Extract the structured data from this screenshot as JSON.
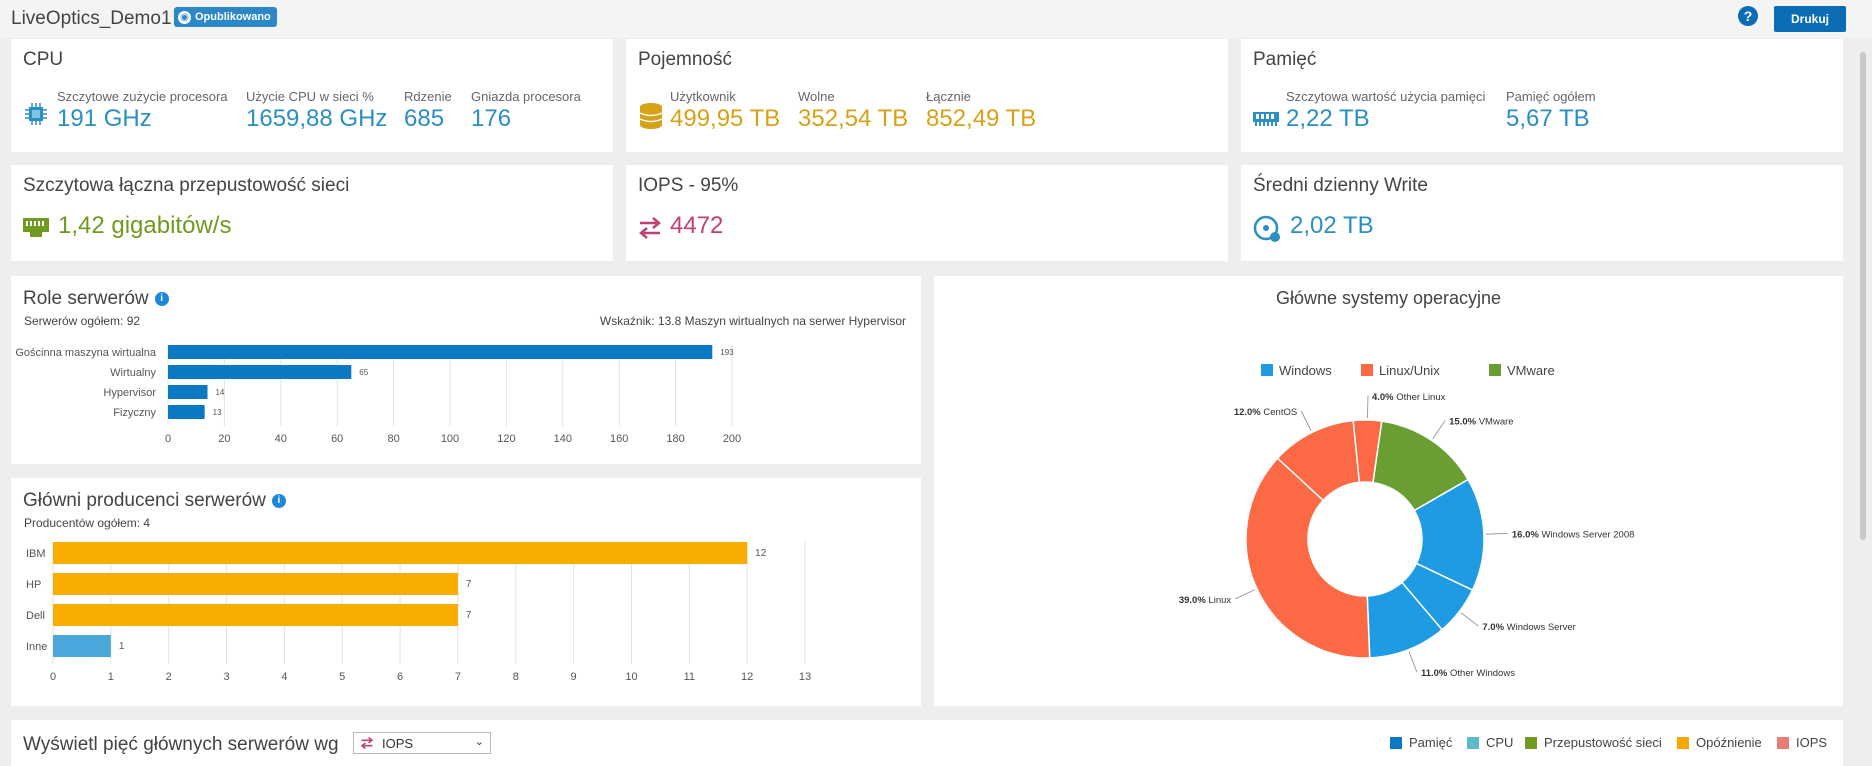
{
  "header": {
    "title": "LiveOptics_Demo1",
    "badge": "Opublikowano",
    "help": "?",
    "print_label": "Drukuj"
  },
  "cpu": {
    "title": "CPU",
    "metrics": [
      {
        "label": "Szczytowe zużycie procesora",
        "value": "191 GHz"
      },
      {
        "label": "Użycie CPU w sieci %",
        "value": "1659,88 GHz"
      },
      {
        "label": "Rdzenie",
        "value": "685"
      },
      {
        "label": "Gniazda procesora",
        "value": "176"
      }
    ]
  },
  "capacity": {
    "title": "Pojemność",
    "metrics": [
      {
        "label": "Użytkownik",
        "value": "499,95 TB"
      },
      {
        "label": "Wolne",
        "value": "352,54 TB"
      },
      {
        "label": "Łącznie",
        "value": "852,49 TB"
      }
    ]
  },
  "memory": {
    "title": "Pamięć",
    "metrics": [
      {
        "label": "Szczytowa wartość użycia pamięci",
        "value": "2,22 TB"
      },
      {
        "label": "Pamięć ogółem",
        "value": "5,67 TB"
      }
    ]
  },
  "network": {
    "title": "Szczytowa łączna przepustowość sieci",
    "value": "1,42 gigabitów/s"
  },
  "iops": {
    "title": "IOPS - 95%",
    "value": "4472"
  },
  "write": {
    "title": "Średni dzienny Write",
    "value": "2,02 TB"
  },
  "colors": {
    "blue_bar": "#0a78c2",
    "gold_bar": "#f9ad00",
    "light_blue_bar": "#4ba6dc",
    "windows": "#1e9be3",
    "linux": "#fb6a44",
    "vmware": "#6a9e33"
  },
  "roles": {
    "title": "Role serwerów",
    "info": "i",
    "total": "Serwerów ogółem: 92",
    "ratio": "Wskaźnik: 13.8 Maszyn wirtualnych na serwer Hypervisor"
  },
  "vendors": {
    "title": "Główni producenci serwerów",
    "info": "i",
    "total": "Producentów ogółem: 4"
  },
  "os": {
    "title": "Główne systemy operacyjne"
  },
  "bottom": {
    "title": "Wyświetl pięć głównych serwerów wg",
    "select_value": "IOPS",
    "legend": [
      {
        "label": "Pamięć",
        "color": "#0a78c2"
      },
      {
        "label": "CPU",
        "color": "#5bbcc8"
      },
      {
        "label": "Przepustowość sieci",
        "color": "#6f9a1f"
      },
      {
        "label": "Opóźnienie",
        "color": "#f5a800"
      },
      {
        "label": "IOPS",
        "color": "#e87c76"
      }
    ]
  },
  "chart_data": [
    {
      "type": "bar",
      "orientation": "horizontal",
      "categories": [
        "Gościnna maszyna wirtualna",
        "Wirtualny",
        "Hypervisor",
        "Fizyczny"
      ],
      "values": [
        193,
        65,
        14,
        13
      ],
      "xlim": [
        0,
        200
      ],
      "xticks": [
        0,
        20,
        40,
        60,
        80,
        100,
        120,
        140,
        160,
        180,
        200
      ],
      "grid": true
    },
    {
      "type": "bar",
      "orientation": "horizontal",
      "categories": [
        "IBM",
        "HP",
        "Dell",
        "Inne"
      ],
      "values": [
        12,
        7,
        7,
        1
      ],
      "xlim": [
        0,
        13
      ],
      "xticks": [
        0,
        1,
        2,
        3,
        4,
        5,
        6,
        7,
        8,
        9,
        10,
        11,
        12,
        13
      ],
      "grid": true
    },
    {
      "type": "pie",
      "donut": true,
      "legend_position": "top",
      "legend": [
        {
          "name": "Windows",
          "color": "#1e9be3"
        },
        {
          "name": "Linux/Unix",
          "color": "#fb6a44"
        },
        {
          "name": "VMware",
          "color": "#6a9e33"
        }
      ],
      "slices": [
        {
          "label": "Other Linux",
          "pct": "4.0%",
          "value": 4.0,
          "color": "#fb6a44"
        },
        {
          "label": "VMware",
          "pct": "15.0%",
          "value": 15.0,
          "color": "#6a9e33"
        },
        {
          "label": "Windows Server 2008",
          "pct": "16.0%",
          "value": 16.0,
          "color": "#1e9be3"
        },
        {
          "label": "Windows Server",
          "pct": "7.0%",
          "value": 7.0,
          "color": "#1e9be3"
        },
        {
          "label": "Other Windows",
          "pct": "11.0%",
          "value": 11.0,
          "color": "#1e9be3"
        },
        {
          "label": "Linux",
          "pct": "39.0%",
          "value": 39.0,
          "color": "#fb6a44"
        },
        {
          "label": "CentOS",
          "pct": "12.0%",
          "value": 12.0,
          "color": "#fb6a44"
        }
      ]
    }
  ]
}
